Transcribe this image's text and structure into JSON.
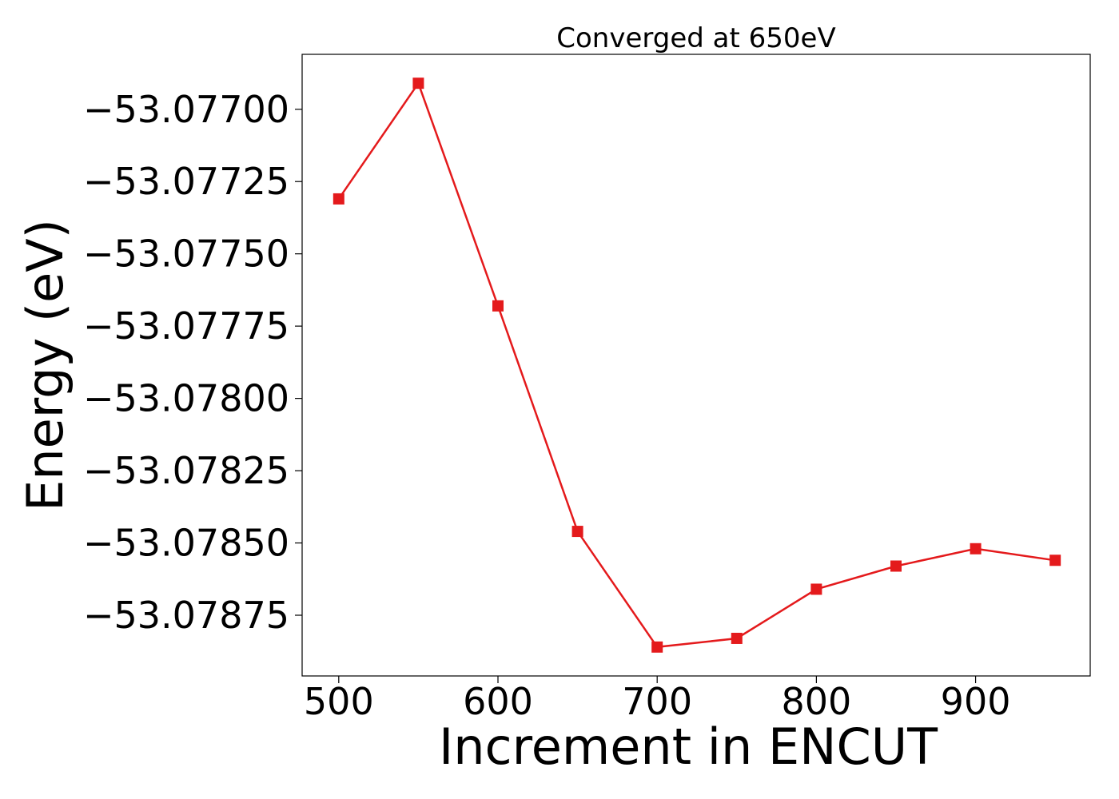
{
  "chart_data": {
    "type": "line",
    "title": "Converged at 650eV",
    "xlabel": "Increment in ENCUT",
    "ylabel": "Energy (eV)",
    "x": [
      500,
      550,
      600,
      650,
      700,
      750,
      800,
      850,
      900,
      950
    ],
    "series": [
      {
        "values": [
          -53.07731,
          -53.07691,
          -53.07768,
          -53.07846,
          -53.07886,
          -53.07883,
          -53.07866,
          -53.07858,
          -53.07852,
          -53.07856
        ],
        "color": "#e41a1c",
        "marker": "square"
      }
    ],
    "xlim": [
      477,
      972
    ],
    "ylim": [
      -53.07896,
      -53.07681
    ],
    "xticks": [
      500,
      600,
      700,
      800,
      900
    ],
    "xtick_labels": [
      "500",
      "600",
      "700",
      "800",
      "900"
    ],
    "yticks": [
      -53.077,
      -53.07725,
      -53.0775,
      -53.07775,
      -53.078,
      -53.07825,
      -53.0785,
      -53.07875
    ],
    "ytick_labels": [
      "−53.07700",
      "−53.07725",
      "−53.07750",
      "−53.07775",
      "−53.07800",
      "−53.07825",
      "−53.07850",
      "−53.07875"
    ],
    "grid": false,
    "legend": "none"
  }
}
